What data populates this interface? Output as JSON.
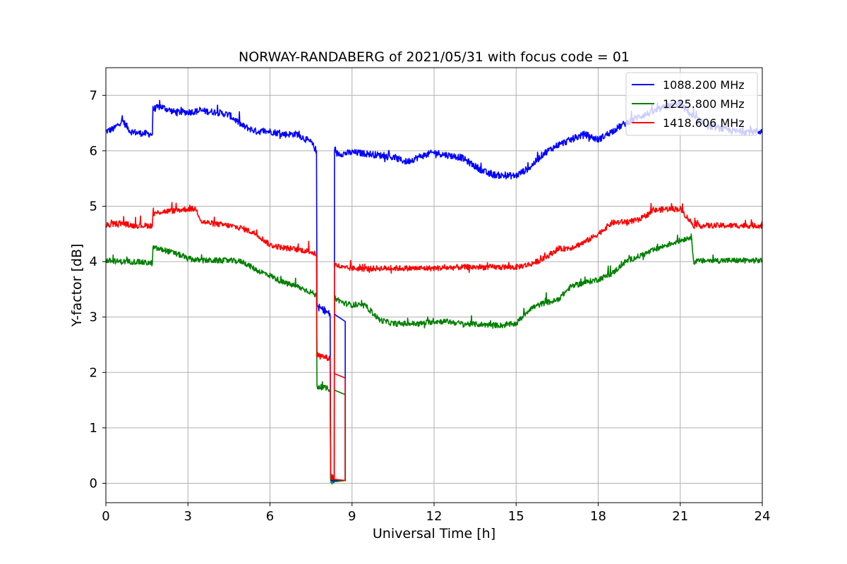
{
  "chart_data": {
    "type": "line",
    "title": "NORWAY-RANDABERG of 2021/05/31 with focus code = 01",
    "xlabel": "Universal Time [h]",
    "ylabel": "Y-factor [dB]",
    "xlim": [
      0,
      24
    ],
    "ylim": [
      -0.35,
      7.5
    ],
    "xticks": [
      0,
      3,
      6,
      9,
      12,
      15,
      18,
      21,
      24
    ],
    "yticks": [
      0,
      1,
      2,
      3,
      4,
      5,
      6,
      7
    ],
    "grid": true,
    "legend_position": "top-right",
    "series": [
      {
        "name": "1088.200 MHz",
        "color": "#0000ff",
        "noise": 0.06,
        "points": [
          [
            0,
            6.35
          ],
          [
            0.3,
            6.4
          ],
          [
            0.6,
            6.55
          ],
          [
            0.9,
            6.35
          ],
          [
            1.2,
            6.32
          ],
          [
            1.7,
            6.3
          ],
          [
            1.72,
            6.75
          ],
          [
            2.0,
            6.8
          ],
          [
            2.5,
            6.7
          ],
          [
            3.0,
            6.7
          ],
          [
            3.5,
            6.72
          ],
          [
            4.0,
            6.7
          ],
          [
            4.5,
            6.65
          ],
          [
            5.0,
            6.45
          ],
          [
            5.5,
            6.35
          ],
          [
            6.0,
            6.35
          ],
          [
            6.5,
            6.3
          ],
          [
            7.0,
            6.3
          ],
          [
            7.5,
            6.15
          ],
          [
            7.7,
            6.0
          ],
          [
            7.72,
            3.2
          ],
          [
            8.2,
            3.05
          ],
          [
            8.22,
            0.1
          ],
          [
            8.35,
            0.05
          ],
          [
            8.36,
            5.95
          ],
          [
            8.7,
            5.95
          ],
          [
            9.0,
            5.97
          ],
          [
            9.5,
            5.95
          ],
          [
            10.0,
            5.92
          ],
          [
            10.5,
            5.88
          ],
          [
            11.0,
            5.8
          ],
          [
            11.5,
            5.9
          ],
          [
            12.0,
            5.97
          ],
          [
            12.5,
            5.92
          ],
          [
            13.0,
            5.88
          ],
          [
            13.5,
            5.72
          ],
          [
            14.0,
            5.58
          ],
          [
            14.5,
            5.55
          ],
          [
            15.0,
            5.55
          ],
          [
            15.5,
            5.7
          ],
          [
            16.0,
            5.95
          ],
          [
            16.5,
            6.1
          ],
          [
            17.0,
            6.2
          ],
          [
            17.5,
            6.3
          ],
          [
            18.0,
            6.2
          ],
          [
            18.5,
            6.35
          ],
          [
            19.0,
            6.5
          ],
          [
            19.5,
            6.62
          ],
          [
            20.0,
            6.7
          ],
          [
            20.5,
            6.8
          ],
          [
            21.0,
            6.85
          ],
          [
            21.5,
            6.6
          ],
          [
            22.0,
            6.45
          ],
          [
            22.5,
            6.4
          ],
          [
            23.0,
            6.35
          ],
          [
            23.5,
            6.35
          ],
          [
            24.0,
            6.35
          ]
        ]
      },
      {
        "name": "1225.800 MHz",
        "color": "#008000",
        "noise": 0.05,
        "points": [
          [
            0,
            4.02
          ],
          [
            0.5,
            4.0
          ],
          [
            1.0,
            4.0
          ],
          [
            1.7,
            3.97
          ],
          [
            1.72,
            4.25
          ],
          [
            2.2,
            4.2
          ],
          [
            2.7,
            4.12
          ],
          [
            3.0,
            4.05
          ],
          [
            3.5,
            4.02
          ],
          [
            4.0,
            4.02
          ],
          [
            4.5,
            4.02
          ],
          [
            5.0,
            4.0
          ],
          [
            5.5,
            3.85
          ],
          [
            6.0,
            3.75
          ],
          [
            6.5,
            3.62
          ],
          [
            7.0,
            3.55
          ],
          [
            7.5,
            3.45
          ],
          [
            7.7,
            3.38
          ],
          [
            7.72,
            1.75
          ],
          [
            8.2,
            1.7
          ],
          [
            8.22,
            0.02
          ],
          [
            8.35,
            0.05
          ],
          [
            8.36,
            3.35
          ],
          [
            8.7,
            3.25
          ],
          [
            9.0,
            3.22
          ],
          [
            9.5,
            3.2
          ],
          [
            10.0,
            2.95
          ],
          [
            10.5,
            2.88
          ],
          [
            11.0,
            2.88
          ],
          [
            11.5,
            2.88
          ],
          [
            12.0,
            2.92
          ],
          [
            12.5,
            2.92
          ],
          [
            13.0,
            2.88
          ],
          [
            13.5,
            2.87
          ],
          [
            14.0,
            2.86
          ],
          [
            14.5,
            2.85
          ],
          [
            15.0,
            2.88
          ],
          [
            15.5,
            3.15
          ],
          [
            16.0,
            3.25
          ],
          [
            16.5,
            3.3
          ],
          [
            17.0,
            3.55
          ],
          [
            17.5,
            3.62
          ],
          [
            18.0,
            3.68
          ],
          [
            18.5,
            3.78
          ],
          [
            19.0,
            4.0
          ],
          [
            19.5,
            4.1
          ],
          [
            20.0,
            4.2
          ],
          [
            20.5,
            4.3
          ],
          [
            21.0,
            4.38
          ],
          [
            21.4,
            4.45
          ],
          [
            21.5,
            4.0
          ],
          [
            22.0,
            4.02
          ],
          [
            22.5,
            4.02
          ],
          [
            23.0,
            4.02
          ],
          [
            23.5,
            4.02
          ],
          [
            24.0,
            4.02
          ]
        ]
      },
      {
        "name": "1418.606 MHz",
        "color": "#ff0000",
        "noise": 0.05,
        "points": [
          [
            0,
            4.65
          ],
          [
            0.5,
            4.7
          ],
          [
            1.0,
            4.65
          ],
          [
            1.7,
            4.65
          ],
          [
            1.72,
            4.85
          ],
          [
            2.0,
            4.9
          ],
          [
            2.5,
            4.92
          ],
          [
            3.0,
            4.95
          ],
          [
            3.3,
            4.95
          ],
          [
            3.5,
            4.72
          ],
          [
            4.0,
            4.68
          ],
          [
            4.5,
            4.65
          ],
          [
            5.0,
            4.6
          ],
          [
            5.5,
            4.5
          ],
          [
            6.0,
            4.3
          ],
          [
            6.5,
            4.25
          ],
          [
            7.0,
            4.22
          ],
          [
            7.5,
            4.18
          ],
          [
            7.7,
            4.12
          ],
          [
            7.72,
            2.32
          ],
          [
            8.2,
            2.25
          ],
          [
            8.22,
            0.15
          ],
          [
            8.35,
            0.1
          ],
          [
            8.36,
            3.95
          ],
          [
            8.7,
            3.88
          ],
          [
            9.0,
            3.88
          ],
          [
            9.5,
            3.87
          ],
          [
            10.0,
            3.88
          ],
          [
            11.0,
            3.88
          ],
          [
            12.0,
            3.88
          ],
          [
            13.0,
            3.9
          ],
          [
            14.0,
            3.9
          ],
          [
            15.0,
            3.9
          ],
          [
            15.5,
            3.95
          ],
          [
            16.0,
            4.05
          ],
          [
            16.5,
            4.22
          ],
          [
            17.0,
            4.25
          ],
          [
            17.5,
            4.35
          ],
          [
            18.0,
            4.5
          ],
          [
            18.5,
            4.7
          ],
          [
            19.0,
            4.72
          ],
          [
            19.5,
            4.75
          ],
          [
            20.0,
            4.92
          ],
          [
            20.5,
            4.95
          ],
          [
            21.0,
            4.95
          ],
          [
            21.5,
            4.65
          ],
          [
            22.0,
            4.65
          ],
          [
            22.5,
            4.65
          ],
          [
            23.0,
            4.65
          ],
          [
            23.5,
            4.65
          ],
          [
            24.0,
            4.65
          ]
        ]
      }
    ],
    "gap_segments": [
      {
        "series": "1088.200 MHz",
        "points": [
          [
            8.2,
            0.05
          ],
          [
            8.75,
            0.05
          ],
          [
            8.75,
            2.92
          ],
          [
            8.36,
            3.05
          ]
        ]
      },
      {
        "series": "1225.800 MHz",
        "points": [
          [
            8.2,
            0.02
          ],
          [
            8.75,
            0.05
          ],
          [
            8.75,
            1.6
          ],
          [
            8.36,
            1.68
          ]
        ]
      },
      {
        "series": "1418.606 MHz",
        "points": [
          [
            8.2,
            0.08
          ],
          [
            8.75,
            0.05
          ],
          [
            8.75,
            1.9
          ],
          [
            8.36,
            1.98
          ]
        ]
      }
    ]
  }
}
